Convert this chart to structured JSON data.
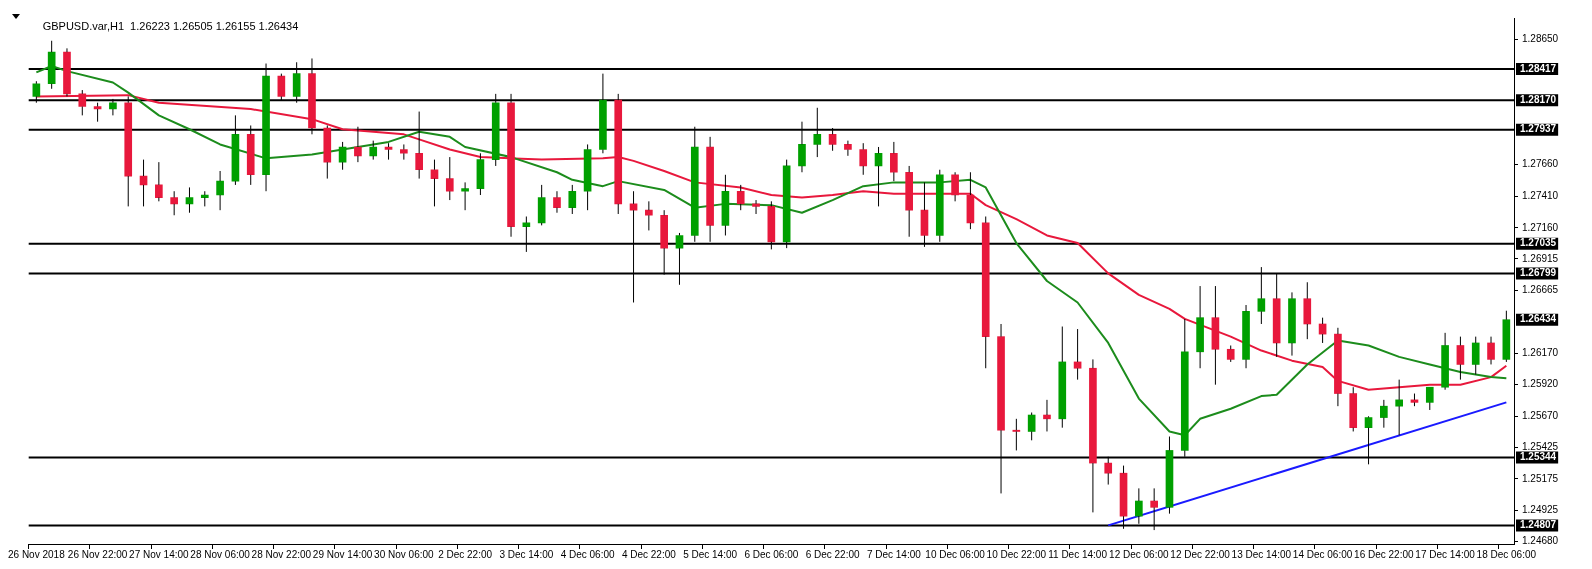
{
  "chart_data": {
    "type": "candlestick",
    "title": "GBPUSD.var,H1  1.26223 1.26505 1.26155 1.26434",
    "categories": [
      "26 Nov 2018",
      null,
      null,
      null,
      "26 Nov 22:00",
      null,
      null,
      null,
      "27 Nov 14:00",
      null,
      null,
      null,
      "28 Nov 06:00",
      null,
      null,
      null,
      "28 Nov 22:00",
      null,
      null,
      null,
      "29 Nov 14:00",
      null,
      null,
      null,
      "30 Nov 06:00",
      null,
      null,
      null,
      "2 Dec 22:00",
      null,
      null,
      null,
      "3 Dec 14:00",
      null,
      null,
      null,
      "4 Dec 06:00",
      null,
      null,
      null,
      "4 Dec 22:00",
      null,
      null,
      null,
      "5 Dec 14:00",
      null,
      null,
      null,
      "6 Dec 06:00",
      null,
      null,
      null,
      "6 Dec 22:00",
      null,
      null,
      null,
      "7 Dec 14:00",
      null,
      null,
      null,
      "10 Dec 06:00",
      null,
      null,
      null,
      "10 Dec 22:00",
      null,
      null,
      null,
      "11 Dec 14:00",
      null,
      null,
      null,
      "12 Dec 06:00",
      null,
      null,
      null,
      "12 Dec 22:00",
      null,
      null,
      null,
      "13 Dec 14:00",
      null,
      null,
      null,
      "14 Dec 06:00",
      null,
      null,
      null,
      "16 Dec 22:00",
      null,
      null,
      null,
      "17 Dec 14:00",
      null,
      null,
      null,
      "18 Dec 06:00"
    ],
    "ohlc": [
      [
        1.282,
        1.2832,
        1.2815,
        1.283
      ],
      [
        1.283,
        1.2864,
        1.2826,
        1.2855
      ],
      [
        1.2855,
        1.2858,
        1.282,
        1.2822
      ],
      [
        1.2822,
        1.2825,
        1.2805,
        1.2812
      ],
      [
        1.2812,
        1.2815,
        1.28,
        1.281
      ],
      [
        1.281,
        1.2818,
        1.2805,
        1.2815
      ],
      [
        1.2815,
        1.282,
        1.2733,
        1.2757
      ],
      [
        1.2757,
        1.277,
        1.2733,
        1.275
      ],
      [
        1.275,
        1.2768,
        1.2737,
        1.274
      ],
      [
        1.274,
        1.2745,
        1.2726,
        1.2735
      ],
      [
        1.2735,
        1.2748,
        1.2728,
        1.274
      ],
      [
        1.274,
        1.2745,
        1.2733,
        1.2742
      ],
      [
        1.2742,
        1.2761,
        1.273,
        1.2753
      ],
      [
        1.2753,
        1.2805,
        1.275,
        1.279
      ],
      [
        1.279,
        1.2797,
        1.275,
        1.2758
      ],
      [
        1.2758,
        1.2846,
        1.2745,
        1.2836
      ],
      [
        1.2836,
        1.2838,
        1.2817,
        1.282
      ],
      [
        1.282,
        1.2847,
        1.2815,
        1.2838
      ],
      [
        1.2838,
        1.285,
        1.279,
        1.2795
      ],
      [
        1.2795,
        1.2797,
        1.2755,
        1.2768
      ],
      [
        1.2768,
        1.2784,
        1.2762,
        1.278
      ],
      [
        1.278,
        1.2796,
        1.2768,
        1.2773
      ],
      [
        1.2773,
        1.2785,
        1.277,
        1.278
      ],
      [
        1.278,
        1.2783,
        1.277,
        1.2778
      ],
      [
        1.2778,
        1.2782,
        1.277,
        1.2775
      ],
      [
        1.2775,
        1.2808,
        1.2755,
        1.2762
      ],
      [
        1.2762,
        1.277,
        1.2733,
        1.2755
      ],
      [
        1.2755,
        1.2772,
        1.2738,
        1.2745
      ],
      [
        1.2745,
        1.2752,
        1.273,
        1.2747
      ],
      [
        1.2747,
        1.2775,
        1.2742,
        1.277
      ],
      [
        1.277,
        1.2822,
        1.2765,
        1.2815
      ],
      [
        1.2815,
        1.2822,
        1.2709,
        1.2717
      ],
      [
        1.2717,
        1.2725,
        1.2697,
        1.272
      ],
      [
        1.272,
        1.275,
        1.2718,
        1.274
      ],
      [
        1.274,
        1.2745,
        1.2728,
        1.2732
      ],
      [
        1.2732,
        1.275,
        1.2727,
        1.2745
      ],
      [
        1.2745,
        1.2782,
        1.273,
        1.2778
      ],
      [
        1.2778,
        1.2838,
        1.2775,
        1.2817
      ],
      [
        1.2817,
        1.2822,
        1.2727,
        1.2735
      ],
      [
        1.2735,
        1.2745,
        1.2657,
        1.273
      ],
      [
        1.273,
        1.2737,
        1.2714,
        1.2726
      ],
      [
        1.2726,
        1.273,
        1.2679,
        1.27
      ],
      [
        1.27,
        1.2712,
        1.2671,
        1.271
      ],
      [
        1.271,
        1.2796,
        1.2705,
        1.278
      ],
      [
        1.278,
        1.2788,
        1.2705,
        1.2718
      ],
      [
        1.2718,
        1.2758,
        1.271,
        1.2745
      ],
      [
        1.2745,
        1.275,
        1.273,
        1.2735
      ],
      [
        1.2735,
        1.2738,
        1.2727,
        1.2733
      ],
      [
        1.2733,
        1.2737,
        1.2699,
        1.2705
      ],
      [
        1.2705,
        1.277,
        1.27,
        1.2765
      ],
      [
        1.2765,
        1.28,
        1.276,
        1.2782
      ],
      [
        1.2782,
        1.2811,
        1.2772,
        1.279
      ],
      [
        1.279,
        1.2795,
        1.2777,
        1.2782
      ],
      [
        1.2782,
        1.2785,
        1.2773,
        1.2778
      ],
      [
        1.2778,
        1.2783,
        1.2758,
        1.2765
      ],
      [
        1.2765,
        1.278,
        1.2733,
        1.2775
      ],
      [
        1.2775,
        1.2784,
        1.2753,
        1.276
      ],
      [
        1.276,
        1.2765,
        1.2709,
        1.273
      ],
      [
        1.273,
        1.2752,
        1.2701,
        1.271
      ],
      [
        1.271,
        1.2762,
        1.2705,
        1.2758
      ],
      [
        1.2758,
        1.276,
        1.2737,
        1.2742
      ],
      [
        1.2742,
        1.276,
        1.2715,
        1.272
      ],
      [
        1.272,
        1.2725,
        1.2605,
        1.263
      ],
      [
        1.263,
        1.264,
        1.2506,
        1.2556
      ],
      [
        1.2556,
        1.2565,
        1.254,
        1.2555
      ],
      [
        1.2555,
        1.257,
        1.2548,
        1.2568
      ],
      [
        1.2568,
        1.258,
        1.2555,
        1.2565
      ],
      [
        1.2565,
        1.2638,
        1.2558,
        1.261
      ],
      [
        1.261,
        1.2636,
        1.2596,
        1.2605
      ],
      [
        1.2605,
        1.2612,
        1.2491,
        1.253
      ],
      [
        1.253,
        1.2535,
        1.2513,
        1.2522
      ],
      [
        1.2522,
        1.2528,
        1.2478,
        1.2488
      ],
      [
        1.2488,
        1.251,
        1.2482,
        1.25
      ],
      [
        1.25,
        1.251,
        1.2477,
        1.2495
      ],
      [
        1.2495,
        1.2551,
        1.249,
        1.254
      ],
      [
        1.254,
        1.2644,
        1.2535,
        1.2618
      ],
      [
        1.2618,
        1.267,
        1.2605,
        1.2645
      ],
      [
        1.2645,
        1.267,
        1.2592,
        1.262
      ],
      [
        1.262,
        1.2623,
        1.261,
        1.2612
      ],
      [
        1.2612,
        1.2655,
        1.2605,
        1.265
      ],
      [
        1.265,
        1.2685,
        1.264,
        1.266
      ],
      [
        1.266,
        1.268,
        1.2614,
        1.2625
      ],
      [
        1.2625,
        1.2665,
        1.2615,
        1.266
      ],
      [
        1.266,
        1.2673,
        1.2628,
        1.264
      ],
      [
        1.264,
        1.2645,
        1.2625,
        1.2632
      ],
      [
        1.2632,
        1.2637,
        1.2575,
        1.2585
      ],
      [
        1.2585,
        1.259,
        1.2555,
        1.2558
      ],
      [
        1.2558,
        1.2567,
        1.2529,
        1.2566
      ],
      [
        1.2566,
        1.258,
        1.2558,
        1.2575
      ],
      [
        1.2575,
        1.2596,
        1.2552,
        1.258
      ],
      [
        1.258,
        1.2585,
        1.2575,
        1.2578
      ],
      [
        1.2578,
        1.259,
        1.2572,
        1.259
      ],
      [
        1.259,
        1.2633,
        1.2588,
        1.2623
      ],
      [
        1.2623,
        1.263,
        1.2596,
        1.2608
      ],
      [
        1.2608,
        1.263,
        1.26,
        1.2625
      ],
      [
        1.2625,
        1.263,
        1.2608,
        1.2612
      ],
      [
        1.2612,
        1.26505,
        1.261,
        1.26434
      ]
    ],
    "colors": [
      "#00a000",
      "#00a000",
      "#e8183c",
      "#e8183c",
      "#e8183c",
      "#00a000",
      "#e8183c",
      "#e8183c",
      "#e8183c",
      "#e8183c",
      "#00a000",
      "#00a000",
      "#00a000",
      "#00a000",
      "#e8183c",
      "#00a000",
      "#e8183c",
      "#00a000",
      "#e8183c",
      "#e8183c",
      "#00a000",
      "#e8183c",
      "#00a000",
      "#e8183c",
      "#e8183c",
      "#e8183c",
      "#e8183c",
      "#e8183c",
      "#00a000",
      "#00a000",
      "#00a000",
      "#e8183c",
      "#00a000",
      "#00a000",
      "#e8183c",
      "#00a000",
      "#00a000",
      "#00a000",
      "#e8183c",
      "#e8183c",
      "#e8183c",
      "#e8183c",
      "#00a000",
      "#00a000",
      "#e8183c",
      "#00a000",
      "#e8183c",
      "#e8183c",
      "#e8183c",
      "#00a000",
      "#00a000",
      "#00a000",
      "#e8183c",
      "#e8183c",
      "#e8183c",
      "#00a000",
      "#e8183c",
      "#e8183c",
      "#e8183c",
      "#00a000",
      "#e8183c",
      "#e8183c",
      "#e8183c",
      "#e8183c",
      "#e8183c",
      "#00a000",
      "#e8183c",
      "#00a000",
      "#e8183c",
      "#e8183c",
      "#e8183c",
      "#e8183c",
      "#00a000",
      "#e8183c",
      "#00a000",
      "#00a000",
      "#00a000",
      "#e8183c",
      "#e8183c",
      "#00a000",
      "#00a000",
      "#e8183c",
      "#00a000",
      "#e8183c",
      "#e8183c",
      "#e8183c",
      "#e8183c",
      "#00a000",
      "#00a000",
      "#00a000",
      "#e8183c",
      "#00a000",
      "#00a000",
      "#e8183c",
      "#00a000",
      "#e8183c",
      "#00a000"
    ],
    "series": [
      {
        "type": "line",
        "color": "#1c8c1c",
        "values": [
          1.2839,
          1.2844,
          1.284,
          null,
          null,
          1.2831,
          1.2823,
          null,
          1.2805,
          null,
          1.2794,
          null,
          1.2782,
          null,
          null,
          1.2771,
          null,
          null,
          1.2774,
          null,
          1.2778,
          null,
          null,
          1.2784,
          null,
          1.2792,
          null,
          1.2788,
          1.278,
          null,
          null,
          1.2772,
          null,
          null,
          1.276,
          1.2754,
          null,
          1.2749,
          1.2753,
          null,
          null,
          1.2746,
          null,
          1.2732,
          null,
          1.2735,
          null,
          null,
          1.2734,
          null,
          1.2728,
          null,
          1.2738,
          null,
          1.2749,
          null,
          1.2752,
          null,
          null,
          1.2752,
          null,
          1.2754,
          1.2748,
          null,
          1.2704,
          null,
          1.2674,
          null,
          1.2657,
          null,
          1.2625,
          null,
          1.2581,
          null,
          1.2555,
          1.2552,
          1.2565,
          null,
          1.2573,
          null,
          1.2583,
          1.2584,
          null,
          1.2608,
          null,
          1.2627,
          null,
          1.2623,
          null,
          1.2614,
          null,
          1.2608,
          null,
          1.2602,
          null,
          1.2598,
          1.2597
        ]
      },
      {
        "type": "line",
        "color": "#e8183c",
        "values": [
          1.282,
          null,
          null,
          null,
          null,
          null,
          1.2821,
          null,
          1.2815,
          null,
          null,
          null,
          null,
          null,
          1.281,
          null,
          null,
          null,
          1.2802,
          null,
          1.2794,
          null,
          null,
          null,
          1.279,
          1.2786,
          null,
          1.2778,
          null,
          1.2772,
          null,
          null,
          null,
          1.277,
          null,
          null,
          null,
          1.2771,
          1.2772,
          1.2769,
          null,
          1.2761,
          null,
          1.2752,
          null,
          null,
          1.2748,
          null,
          1.2742,
          null,
          1.274,
          null,
          1.2742,
          null,
          1.2745,
          null,
          1.2743,
          null,
          null,
          null,
          null,
          1.2743,
          1.2734,
          null,
          1.2723,
          null,
          1.271,
          null,
          1.2704,
          null,
          1.268,
          null,
          1.2663,
          null,
          1.2652,
          1.2644,
          null,
          null,
          1.263,
          null,
          1.2619,
          null,
          1.2611,
          null,
          1.2606,
          1.2595,
          null,
          1.2588,
          null,
          1.259,
          null,
          1.2592,
          null,
          1.2592,
          null,
          1.2598,
          1.2607
        ]
      },
      {
        "type": "line",
        "color": "#1a1aff",
        "values": [
          null,
          null,
          null,
          null,
          null,
          null,
          null,
          null,
          null,
          null,
          null,
          null,
          null,
          null,
          null,
          null,
          null,
          null,
          null,
          null,
          null,
          null,
          null,
          null,
          null,
          null,
          null,
          null,
          null,
          null,
          null,
          null,
          null,
          null,
          null,
          null,
          null,
          null,
          null,
          null,
          null,
          null,
          null,
          null,
          null,
          null,
          null,
          null,
          null,
          null,
          null,
          null,
          null,
          null,
          null,
          null,
          null,
          null,
          null,
          null,
          null,
          null,
          null,
          null,
          null,
          null,
          null,
          null,
          null,
          null,
          1.24807,
          null,
          null,
          null,
          null,
          null,
          null,
          null,
          null,
          null,
          null,
          null,
          null,
          null,
          null,
          null,
          null,
          null,
          null,
          null,
          null,
          null,
          null,
          null,
          null,
          null,
          1.2578
        ]
      }
    ],
    "ylim": [
      1.2466,
      1.2882
    ],
    "yticks": [
      {
        "value": 1.2865,
        "label": "1.28650"
      },
      {
        "value": 1.2766,
        "label": "1.27660"
      },
      {
        "value": 1.2741,
        "label": "1.27410"
      },
      {
        "value": 1.2716,
        "label": "1.27160"
      },
      {
        "value": 1.26915,
        "label": "1.26915"
      },
      {
        "value": 1.26665,
        "label": "1.26665"
      },
      {
        "value": 1.2617,
        "label": "1.26170"
      },
      {
        "value": 1.2592,
        "label": "1.25920"
      },
      {
        "value": 1.2567,
        "label": "1.25670"
      },
      {
        "value": 1.25425,
        "label": "1.25425"
      },
      {
        "value": 1.25175,
        "label": "1.25175"
      },
      {
        "value": 1.24925,
        "label": "1.24925"
      },
      {
        "value": 1.2468,
        "label": "1.24680"
      }
    ],
    "ref_lines": [
      {
        "axis": "y",
        "value": 1.28417,
        "label": "1.28417",
        "color": "#000000"
      },
      {
        "axis": "y",
        "value": 1.2817,
        "label": "1.28170",
        "color": "#000000"
      },
      {
        "axis": "y",
        "value": 1.27937,
        "label": "1.27937",
        "color": "#000000"
      },
      {
        "axis": "y",
        "value": 1.27035,
        "label": "1.27035",
        "color": "#000000"
      },
      {
        "axis": "y",
        "value": 1.26799,
        "label": "1.26799",
        "color": "#000000"
      },
      {
        "axis": "y",
        "value": 1.25344,
        "label": "1.25344",
        "color": "#000000"
      },
      {
        "axis": "y",
        "value": 1.24807,
        "label": "1.24807",
        "color": "#000000"
      }
    ],
    "annotations": [
      "1.26434"
    ]
  }
}
